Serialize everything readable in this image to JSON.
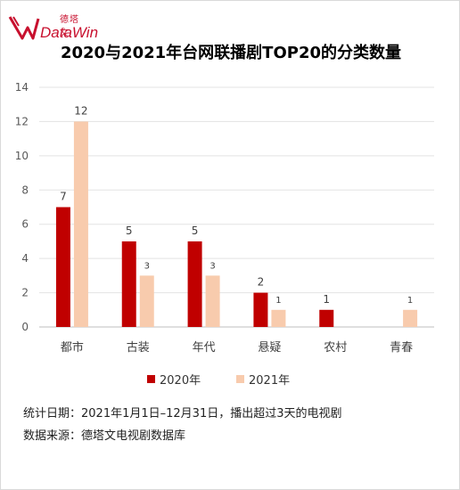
{
  "logo": {
    "text_cn": "德塔文",
    "text_en": "DataWin",
    "color": "#c8102e"
  },
  "chart_data": {
    "type": "bar",
    "title": "2020与2021年台网联播剧TOP20的分类数量",
    "categories": [
      "都市",
      "古装",
      "年代",
      "悬疑",
      "农村",
      "青春"
    ],
    "series": [
      {
        "name": "2020年",
        "color": "#c00000",
        "values": [
          7,
          5,
          5,
          2,
          1,
          null
        ]
      },
      {
        "name": "2021年",
        "color": "#f8cbad",
        "values": [
          12,
          3,
          3,
          1,
          null,
          1
        ]
      }
    ],
    "ylim": [
      0,
      14
    ],
    "yticks": [
      0,
      2,
      4,
      6,
      8,
      10,
      12,
      14
    ],
    "grid": true,
    "legend_position": "bottom",
    "xlabel": "",
    "ylabel": ""
  },
  "footer": {
    "line1": "统计日期：2021年1月1日–12月31日，播出超过3天的电视剧",
    "line2": "数据来源：德塔文电视剧数据库"
  }
}
